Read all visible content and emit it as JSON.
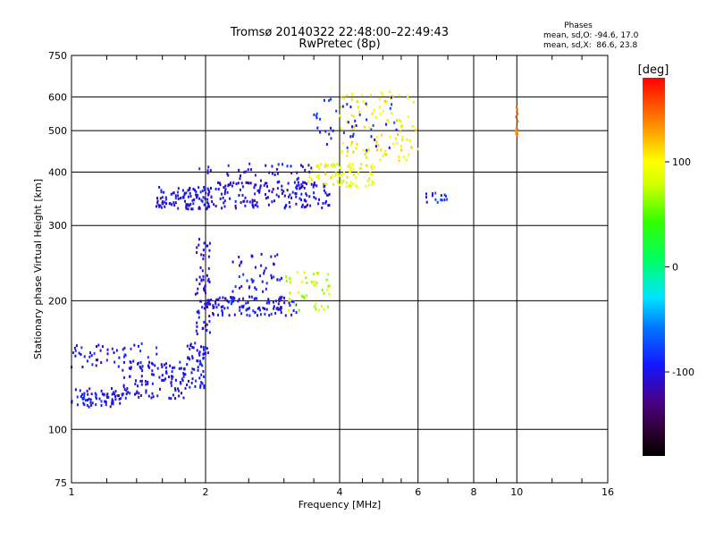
{
  "chart_data": {
    "type": "scatter",
    "title": "Tromsø 20140322 22:48:00–22:49:43",
    "subtitle": "RwPretec (8p)",
    "xlabel": "Frequency [MHz]",
    "ylabel": "Stationary phase Virtual Height [km]",
    "x_scale": "log",
    "y_scale": "log",
    "xlim": [
      1,
      16
    ],
    "ylim": [
      75,
      750
    ],
    "grid": true,
    "x_ticks": [
      1,
      2,
      4,
      6,
      8,
      10,
      16
    ],
    "x_tick_labels": [
      "1",
      "2",
      "4",
      "6",
      "8",
      "10",
      "16"
    ],
    "x_minor_ticks": [
      1.2,
      1.4,
      1.6,
      1.8,
      2.5,
      3,
      3.5,
      4.5,
      5,
      5.5,
      7,
      9,
      12,
      14
    ],
    "y_ticks": [
      75,
      100,
      200,
      300,
      400,
      500,
      600,
      750
    ],
    "y_tick_labels": [
      "75",
      "100",
      "200",
      "300",
      "400",
      "500",
      "600",
      "750"
    ],
    "stats": {
      "heading": "Phases",
      "line1": "mean, sd,O: -94.6, 17.0",
      "line2": "mean, sd,X:  86.6, 23.8"
    },
    "colorbar": {
      "label": "[deg]",
      "range": [
        -180,
        180
      ],
      "ticks": [
        100,
        0,
        -100
      ],
      "tick_labels": [
        "100",
        "0",
        "-100"
      ]
    },
    "traces": [
      {
        "name": "",
        "x_range": [
          1.0,
          1.3
        ],
        "h_range": [
          113,
          125
        ],
        "phase": -100,
        "count": 70
      },
      {
        "name": "",
        "x_range": [
          1.3,
          1.8
        ],
        "h_range": [
          118,
          145
        ],
        "phase": -100,
        "count": 110
      },
      {
        "name": "",
        "x_range": [
          1.8,
          2.0
        ],
        "h_range": [
          125,
          160
        ],
        "phase": -100,
        "count": 55
      },
      {
        "name": "",
        "x_range": [
          1.0,
          1.6
        ],
        "h_range": [
          140,
          160
        ],
        "phase": -95,
        "count": 55
      },
      {
        "name": "",
        "x_range": [
          1.9,
          2.05
        ],
        "h_range": [
          150,
          280
        ],
        "phase": -105,
        "count": 70
      },
      {
        "name": "",
        "x_range": [
          2.0,
          3.2
        ],
        "h_range": [
          185,
          205
        ],
        "phase": -98,
        "count": 120
      },
      {
        "name": "",
        "x_range": [
          2.3,
          3.0
        ],
        "h_range": [
          210,
          260
        ],
        "phase": -95,
        "count": 45
      },
      {
        "name": "",
        "x_range": [
          3.0,
          3.8
        ],
        "h_range": [
          190,
          235
        ],
        "phase": 75,
        "count": 45
      },
      {
        "name": "",
        "x_range": [
          1.55,
          2.1
        ],
        "h_range": [
          328,
          370
        ],
        "phase": -100,
        "count": 110
      },
      {
        "name": "",
        "x_range": [
          2.1,
          3.8
        ],
        "h_range": [
          330,
          380
        ],
        "phase": -105,
        "count": 160
      },
      {
        "name": "",
        "x_range": [
          1.9,
          3.5
        ],
        "h_range": [
          380,
          420
        ],
        "phase": -100,
        "count": 40
      },
      {
        "name": "",
        "x_range": [
          3.4,
          4.8
        ],
        "h_range": [
          370,
          420
        ],
        "phase": 95,
        "count": 80
      },
      {
        "name": "",
        "x_range": [
          4.0,
          6.0
        ],
        "h_range": [
          420,
          620
        ],
        "phase": 100,
        "count": 100
      },
      {
        "name": "",
        "x_range": [
          3.5,
          5.5
        ],
        "h_range": [
          450,
          600
        ],
        "phase": -90,
        "count": 45
      },
      {
        "name": "",
        "x_range": [
          6.2,
          7.0
        ],
        "h_range": [
          340,
          360
        ],
        "phase": -85,
        "count": 15
      },
      {
        "name": "",
        "x_range": [
          9.95,
          10.05
        ],
        "h_range": [
          480,
          590
        ],
        "phase": 140,
        "count": 12
      }
    ]
  }
}
